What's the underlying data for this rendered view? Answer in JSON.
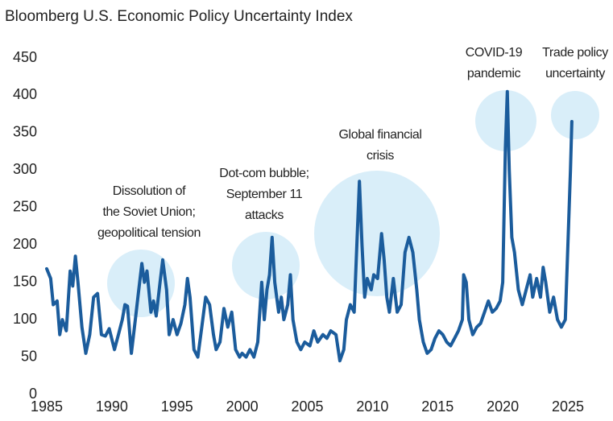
{
  "chart_data": {
    "type": "line",
    "title": "Bloomberg U.S. Economic Policy Uncertainty Index",
    "x": [
      1985.0,
      1985.3,
      1985.5,
      1985.8,
      1986.0,
      1986.2,
      1986.5,
      1986.8,
      1987.0,
      1987.2,
      1987.4,
      1987.7,
      1988.0,
      1988.3,
      1988.6,
      1988.9,
      1989.2,
      1989.5,
      1989.8,
      1990.2,
      1990.5,
      1990.8,
      1991.0,
      1991.2,
      1991.5,
      1991.8,
      1992.0,
      1992.3,
      1992.5,
      1992.7,
      1993.0,
      1993.2,
      1993.4,
      1993.7,
      1993.9,
      1994.2,
      1994.4,
      1994.7,
      1995.0,
      1995.3,
      1995.6,
      1995.8,
      1996.0,
      1996.3,
      1996.6,
      1996.9,
      1997.2,
      1997.5,
      1997.8,
      1998.0,
      1998.3,
      1998.6,
      1998.9,
      1999.2,
      1999.5,
      1999.8,
      2000.0,
      2000.3,
      2000.6,
      2000.9,
      2001.2,
      2001.5,
      2001.7,
      2001.9,
      2002.1,
      2002.3,
      2002.5,
      2002.8,
      2003.0,
      2003.2,
      2003.5,
      2003.7,
      2003.9,
      2004.2,
      2004.5,
      2004.8,
      2005.2,
      2005.5,
      2005.8,
      2006.2,
      2006.5,
      2006.8,
      2007.2,
      2007.5,
      2007.8,
      2008.0,
      2008.3,
      2008.6,
      2008.8,
      2009.0,
      2009.2,
      2009.4,
      2009.6,
      2009.9,
      2010.1,
      2010.4,
      2010.7,
      2010.9,
      2011.1,
      2011.3,
      2011.6,
      2011.9,
      2012.2,
      2012.5,
      2012.8,
      2013.1,
      2013.4,
      2013.6,
      2013.9,
      2014.2,
      2014.5,
      2014.8,
      2015.1,
      2015.4,
      2015.7,
      2016.0,
      2016.3,
      2016.6,
      2016.9,
      2017.0,
      2017.2,
      2017.4,
      2017.7,
      2018.0,
      2018.3,
      2018.6,
      2018.9,
      2019.2,
      2019.5,
      2019.8,
      2020.0,
      2020.2,
      2020.35,
      2020.5,
      2020.7,
      2020.9,
      2021.2,
      2021.5,
      2021.8,
      2022.1,
      2022.3,
      2022.6,
      2022.9,
      2023.1,
      2023.3,
      2023.6,
      2023.9,
      2024.2,
      2024.5,
      2024.8,
      2025.0,
      2025.2,
      2025.3
    ],
    "series": [
      {
        "color": "#1b5c9c",
        "values": [
          168,
          155,
          120,
          125,
          80,
          100,
          85,
          165,
          145,
          185,
          150,
          90,
          55,
          80,
          130,
          135,
          80,
          78,
          88,
          60,
          80,
          100,
          120,
          118,
          55,
          100,
          130,
          175,
          150,
          165,
          110,
          125,
          105,
          150,
          180,
          140,
          80,
          100,
          80,
          95,
          120,
          155,
          130,
          60,
          50,
          90,
          130,
          120,
          80,
          60,
          70,
          115,
          90,
          110,
          60,
          50,
          55,
          50,
          60,
          50,
          70,
          150,
          100,
          140,
          160,
          210,
          150,
          110,
          130,
          100,
          120,
          160,
          100,
          70,
          60,
          70,
          65,
          85,
          70,
          80,
          75,
          85,
          80,
          45,
          60,
          100,
          120,
          110,
          200,
          285,
          200,
          130,
          155,
          140,
          160,
          155,
          215,
          180,
          130,
          110,
          155,
          110,
          120,
          190,
          210,
          190,
          140,
          100,
          70,
          55,
          60,
          75,
          85,
          80,
          70,
          65,
          75,
          85,
          100,
          160,
          150,
          100,
          80,
          90,
          95,
          110,
          125,
          110,
          115,
          125,
          150,
          330,
          405,
          300,
          210,
          190,
          140,
          120,
          140,
          160,
          130,
          155,
          130,
          170,
          150,
          110,
          130,
          100,
          90,
          100,
          200,
          300,
          365
        ]
      }
    ],
    "xlim": [
      1985,
      2025
    ],
    "ylim": [
      0,
      450
    ],
    "xticks": [
      1985,
      1990,
      1995,
      2000,
      2005,
      2010,
      2015,
      2020,
      2025
    ],
    "yticks": [
      0,
      50,
      100,
      150,
      200,
      250,
      300,
      350,
      400,
      450
    ],
    "annotations": [
      {
        "lines": [
          "Dissolution of",
          "the Soviet Union;",
          "geopolitical tension"
        ]
      },
      {
        "lines": [
          "Dot-com bubble;",
          "September 11",
          "attacks"
        ]
      },
      {
        "lines": [
          "Global financial",
          "crisis"
        ]
      },
      {
        "lines": [
          "COVID-19",
          "pandemic"
        ]
      },
      {
        "lines": [
          "Trade policy",
          "uncertainty"
        ]
      }
    ]
  }
}
